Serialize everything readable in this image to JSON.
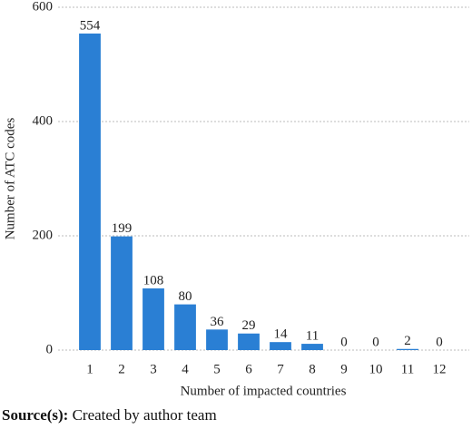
{
  "chart_data": {
    "type": "bar",
    "x_label": "Number of impacted countries",
    "y_label": "Number of ATC codes",
    "categories": [
      "1",
      "2",
      "3",
      "4",
      "5",
      "6",
      "7",
      "8",
      "9",
      "10",
      "11",
      "12"
    ],
    "values": [
      554,
      199,
      108,
      80,
      36,
      29,
      14,
      11,
      0,
      0,
      2,
      0
    ],
    "color": "#2a7fd4",
    "ylim": [
      0,
      600
    ],
    "yticks": [
      0,
      200,
      400,
      600
    ],
    "grid": true
  },
  "source": {
    "label": "Source(s):",
    "text": "Created by author team"
  }
}
